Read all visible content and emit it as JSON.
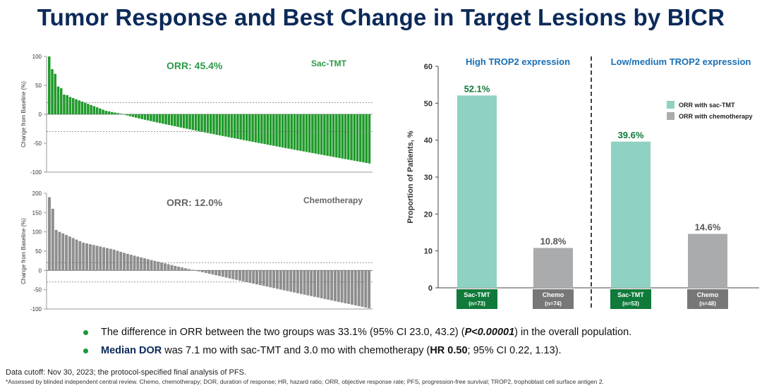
{
  "title": "Tumor Response and Best Change in Target Lesions by BICR",
  "colors": {
    "sac": "#1f9a2a",
    "chemo": "#8e8e8e",
    "teal": "#8fd1c2",
    "gray": "#a9abad",
    "green_label": "#0f7a3a",
    "navy": "#0b2a59",
    "green_text": "#2e9a48",
    "blue_text": "#1a6fb5"
  },
  "bullets": {
    "b1_text": "The difference in ORR between the two groups was 33.1% (95% CI 23.0, 43.2) (",
    "b1_p": "P<0.00001",
    "b1_end": ") in the overall population.",
    "b2_bold": "Median DOR",
    "b2_text": " was 7.1 mo with sac-TMT and 3.0 mo with chemotherapy (",
    "b2_hr": "HR 0.50",
    "b2_end": "; 95% CI 0.22, 1.13)."
  },
  "footnotes": {
    "cutoff": "Data cutoff: Nov 30, 2023; the protocol-specified final analysis of PFS.",
    "abbrev": "*Assessed by blinded independent central review.  Chemo, chemotherapy; DOR, duration of response; HR, hazard ratio; ORR, objective response rate; PFS, progression-free survival; TROP2, trophoblast cell surface antigen 2."
  },
  "chart_data": [
    {
      "type": "bar",
      "name": "waterfall-sac-tmt",
      "orr_label": "ORR: 45.4%",
      "arm_label": "Sac-TMT",
      "ylabel": "Change from Baseline (%)",
      "ylim": [
        -100,
        100
      ],
      "yticks": [
        100,
        50,
        0,
        -50,
        -100
      ],
      "ref_lines": [
        20,
        -30
      ],
      "n_patients": 108,
      "first_values": [
        100,
        78,
        70,
        48,
        45,
        34,
        33,
        30,
        28,
        26,
        24,
        22,
        20,
        18,
        16,
        14,
        12,
        10,
        8,
        6,
        5,
        4,
        3,
        2,
        1
      ],
      "min_value": -85
    },
    {
      "type": "bar",
      "name": "waterfall-chemotherapy",
      "orr_label": "ORR: 12.0%",
      "arm_label": "Chemotherapy",
      "ylabel": "Change from Baseline (%)",
      "ylim": [
        -100,
        200
      ],
      "yticks": [
        200,
        150,
        100,
        50,
        0,
        -50,
        -100
      ],
      "ref_lines": [
        20,
        -30
      ],
      "n_patients": 95,
      "first_values": [
        190,
        160,
        105,
        100,
        96,
        92,
        88,
        84,
        80,
        76,
        72,
        70,
        68,
        66,
        64,
        62,
        60,
        58,
        56,
        54
      ],
      "min_value": -98
    },
    {
      "type": "bar",
      "name": "orr-by-trop2",
      "ylabel": "Proportion of Patients, %",
      "ylim": [
        0,
        60
      ],
      "yticks": [
        0,
        10,
        20,
        30,
        40,
        50,
        60
      ],
      "groups": [
        "High TROP2 expression",
        "Low/medium TROP2 expression"
      ],
      "series": [
        {
          "name": "ORR with sac-TMT",
          "values": [
            52.1,
            39.6
          ],
          "labels": [
            "52.1%",
            "39.6%"
          ],
          "cats": [
            "Sac-TMT\n(n=73)",
            "Sac-TMT\n(n=53)"
          ]
        },
        {
          "name": "ORR with chemotherapy",
          "values": [
            10.8,
            14.6
          ],
          "labels": [
            "10.8%",
            "14.6%"
          ],
          "cats": [
            "Chemo\n(n=74)",
            "Chemo\n(n=48)"
          ]
        }
      ]
    }
  ]
}
